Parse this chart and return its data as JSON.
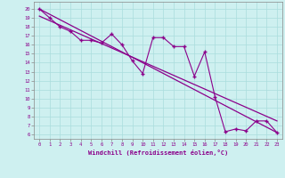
{
  "xlabel": "Windchill (Refroidissement éolien,°C)",
  "xlim": [
    -0.5,
    23.5
  ],
  "ylim": [
    5.5,
    20.8
  ],
  "yticks": [
    6,
    7,
    8,
    9,
    10,
    11,
    12,
    13,
    14,
    15,
    16,
    17,
    18,
    19,
    20
  ],
  "xticks": [
    0,
    1,
    2,
    3,
    4,
    5,
    6,
    7,
    8,
    9,
    10,
    11,
    12,
    13,
    14,
    15,
    16,
    17,
    18,
    19,
    20,
    21,
    22,
    23
  ],
  "line_color": "#8b008b",
  "bg_color": "#cef0f0",
  "data_x": [
    0,
    1,
    2,
    3,
    4,
    5,
    6,
    7,
    8,
    9,
    10,
    11,
    12,
    13,
    14,
    15,
    16,
    17,
    18,
    19,
    20,
    21,
    22,
    23
  ],
  "data_y": [
    20.0,
    19.0,
    18.0,
    17.5,
    16.5,
    16.5,
    16.2,
    17.2,
    16.0,
    14.2,
    12.8,
    16.8,
    16.8,
    15.8,
    15.8,
    12.5,
    15.2,
    10.2,
    6.3,
    6.6,
    6.4,
    7.5,
    7.5,
    6.2
  ],
  "trend1_x": [
    0,
    23
  ],
  "trend1_y": [
    20.0,
    6.2
  ],
  "trend2_x": [
    0,
    23
  ],
  "trend2_y": [
    19.2,
    7.5
  ]
}
